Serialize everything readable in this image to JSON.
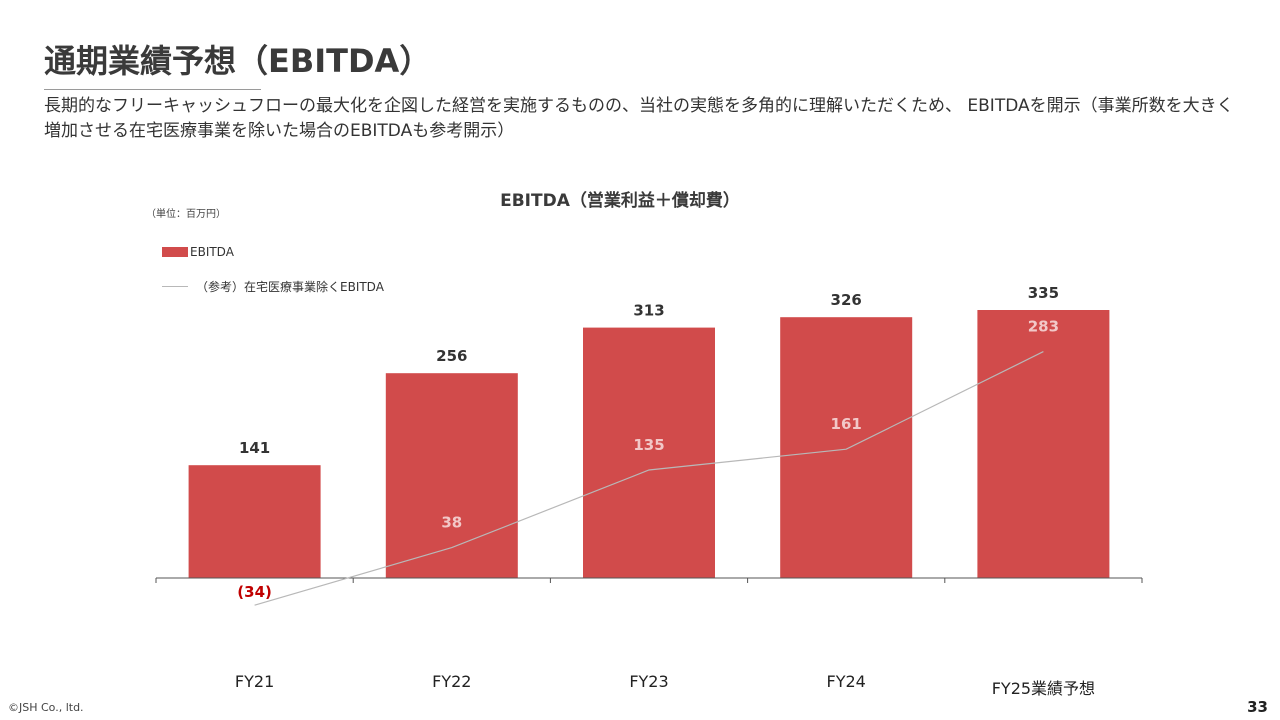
{
  "header": {
    "title": "通期業績予想（EBITDA）",
    "subtitle": "長期的なフリーキャッシュフローの最大化を企図した経営を実施するものの、当社の実態を多角的に理解いただくため、 EBITDAを開示（事業所数を大きく増加させる在宅医療事業を除いた場合のEBITDAも参考開示）"
  },
  "chart_data": {
    "type": "bar",
    "title": "EBITDA（営業利益＋償却費）",
    "unit_label": "（単位：百万円）",
    "categories": [
      "FY21",
      "FY22",
      "FY23",
      "FY24",
      "FY25業績予想"
    ],
    "series": [
      {
        "name": "EBITDA",
        "type": "bar",
        "color": "#d14b4b",
        "values": [
          141,
          256,
          313,
          326,
          335
        ],
        "labels": [
          "141",
          "256",
          "313",
          "326",
          "335"
        ]
      },
      {
        "name": "（参考）在宅医療事業除くEBITDA",
        "type": "line",
        "color": "#b8b8b8",
        "values": [
          -34,
          38,
          135,
          161,
          283
        ],
        "labels": [
          "(34)",
          "38",
          "135",
          "161",
          "283"
        ]
      }
    ],
    "ylim": [
      -40,
      340
    ],
    "grid": false,
    "legend_position": "top-left",
    "label_colors": {
      "bar": "#333333",
      "line_on_bar": "#f2c8c8",
      "negative": "#c00000"
    }
  },
  "footer": {
    "copyright": "©JSH Co., ltd.",
    "page_number": "33"
  }
}
